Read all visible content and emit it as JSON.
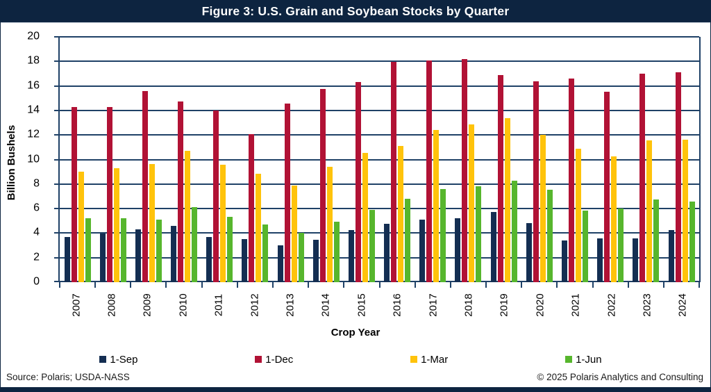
{
  "title": "Figure 3: U.S. Grain and Soybean Stocks by Quarter",
  "y_axis": {
    "label": "Billion Bushels",
    "ticks": [
      20,
      18,
      16,
      14,
      12,
      10,
      8,
      6,
      4,
      2,
      0
    ]
  },
  "x_axis": {
    "label": "Crop Year"
  },
  "footer": {
    "source": "Source: Polaris; USDA-NASS",
    "copyright": "© 2025 Polaris Analytics and Consulting"
  },
  "colors": {
    "title_bar": "#0d2440",
    "gridline": "#1f4167",
    "bottom_strip": "#0d2440",
    "sep": "#142e52",
    "dec": "#b11235",
    "mar": "#ffc30b",
    "jun": "#57b62d"
  },
  "chart_data": {
    "type": "bar",
    "title": "Figure 3: U.S. Grain and Soybean Stocks by Quarter",
    "xlabel": "Crop Year",
    "ylabel": "Billion Bushels",
    "ylim": [
      0,
      20
    ],
    "ytick_step": 2,
    "grid": true,
    "legend_position": "bottom",
    "categories": [
      "2007",
      "2008",
      "2009",
      "2010",
      "2011",
      "2012",
      "2013",
      "2014",
      "2015",
      "2016",
      "2017",
      "2018",
      "2019",
      "2020",
      "2021",
      "2022",
      "2023",
      "2024"
    ],
    "series": [
      {
        "name": "1-Sep",
        "color": "#142e52",
        "values": [
          3.7,
          3.95,
          4.3,
          4.6,
          3.7,
          3.5,
          3.0,
          3.45,
          4.25,
          4.75,
          5.1,
          5.2,
          5.75,
          4.8,
          3.4,
          3.55,
          3.55,
          4.25
        ]
      },
      {
        "name": "1-Dec",
        "color": "#b11235",
        "values": [
          14.3,
          14.3,
          15.6,
          14.75,
          14.0,
          12.05,
          14.55,
          15.75,
          16.3,
          17.95,
          18.05,
          18.2,
          16.9,
          16.4,
          16.6,
          15.5,
          17.0,
          17.1
        ]
      },
      {
        "name": "1-Mar",
        "color": "#ffc30b",
        "values": [
          9.0,
          9.3,
          9.65,
          10.7,
          9.55,
          8.85,
          7.9,
          9.4,
          10.55,
          11.1,
          12.4,
          12.85,
          13.4,
          12.0,
          10.9,
          10.25,
          11.55,
          11.6
        ]
      },
      {
        "name": "1-Jun",
        "color": "#57b62d",
        "values": [
          5.2,
          5.2,
          5.1,
          6.1,
          5.35,
          4.7,
          4.0,
          4.95,
          5.9,
          6.8,
          7.6,
          7.8,
          8.3,
          7.55,
          5.85,
          6.0,
          6.75,
          6.6
        ]
      }
    ]
  }
}
